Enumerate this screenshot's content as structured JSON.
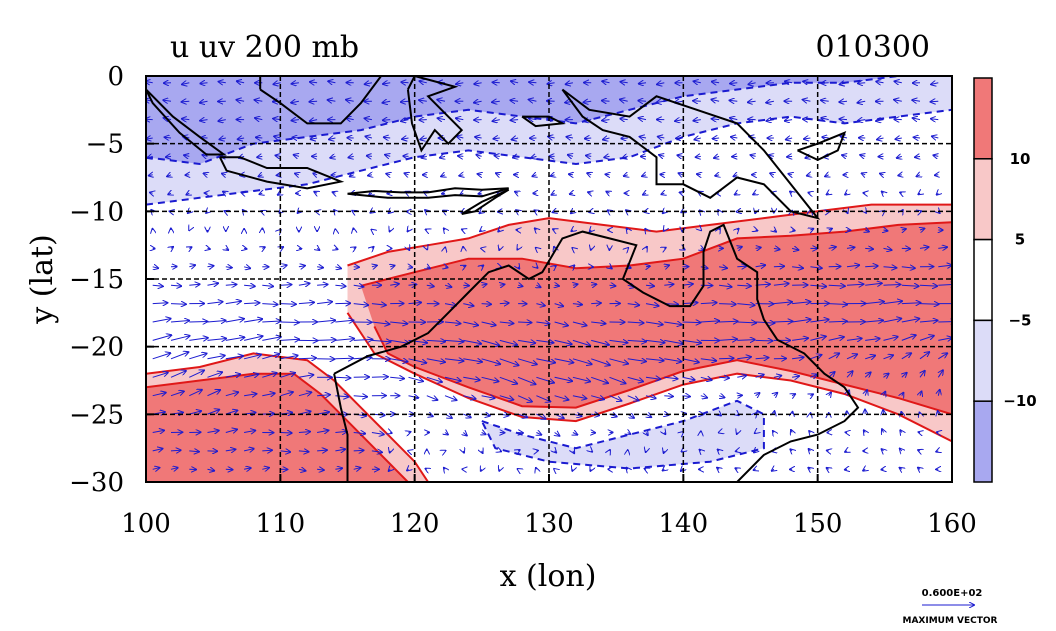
{
  "chart_data": {
    "type": "heatmap",
    "title": "u uv 200 mb",
    "timestamp": "010300",
    "xlabel": "x (lon)",
    "ylabel": "y (lat)",
    "xlim": [
      100,
      160
    ],
    "ylim": [
      -30,
      0
    ],
    "x_ticks": [
      "100",
      "110",
      "120",
      "130",
      "140",
      "150",
      "160"
    ],
    "y_ticks": [
      "0",
      "−5",
      "−10",
      "−15",
      "−20",
      "−25",
      "−30"
    ],
    "x_tick_values": [
      100,
      110,
      120,
      130,
      140,
      150,
      160
    ],
    "y_tick_values": [
      0,
      -5,
      -10,
      -15,
      -20,
      -25,
      -30
    ],
    "grid": true,
    "legend": {
      "placement": "right",
      "levels": [
        "10",
        "5",
        "−5",
        "−10"
      ],
      "level_values": [
        10,
        5,
        -5,
        -10
      ],
      "colors": [
        "#f07878",
        "#f8c8c8",
        "#ffffff",
        "#dcdcf8",
        "#a8a8f0"
      ]
    },
    "vector_legend": {
      "value": "0.600E+02",
      "label": "MAXIMUM VECTOR"
    },
    "shading": {
      "strong_positive_band": {
        "description_levels": "u > 10",
        "north_edge": [
          [
            116,
            -15.5
          ],
          [
            120,
            -14.5
          ],
          [
            124,
            -13.5
          ],
          [
            128,
            -13.5
          ],
          [
            132,
            -14.2
          ],
          [
            136,
            -14.0
          ],
          [
            140,
            -13.5
          ],
          [
            144,
            -12.0
          ],
          [
            148,
            -11.8
          ],
          [
            152,
            -11.5
          ],
          [
            156,
            -11.0
          ],
          [
            160,
            -10.8
          ]
        ],
        "south_edge": [
          [
            160,
            -25.0
          ],
          [
            156,
            -23.8
          ],
          [
            152,
            -22.8
          ],
          [
            148,
            -21.8
          ],
          [
            144,
            -21.0
          ],
          [
            140,
            -21.8
          ],
          [
            136,
            -23.2
          ],
          [
            132,
            -24.5
          ],
          [
            128,
            -24.4
          ],
          [
            124,
            -23.0
          ],
          [
            120,
            -21.5
          ],
          [
            118,
            -20.5
          ],
          [
            117,
            -18.5
          ]
        ]
      },
      "weak_positive_band": {
        "description_levels": "5 < u < 10",
        "north_edge": [
          [
            115,
            -14.0
          ],
          [
            118,
            -13.0
          ],
          [
            121,
            -12.5
          ],
          [
            124,
            -12.0
          ],
          [
            127,
            -11.0
          ],
          [
            130,
            -10.5
          ],
          [
            134,
            -11.0
          ],
          [
            138,
            -11.5
          ],
          [
            142,
            -11.0
          ],
          [
            146,
            -10.5
          ],
          [
            150,
            -10.0
          ],
          [
            154,
            -9.5
          ],
          [
            160,
            -9.5
          ]
        ],
        "south_edge": [
          [
            160,
            -27.0
          ],
          [
            156,
            -25.0
          ],
          [
            152,
            -23.5
          ],
          [
            148,
            -22.5
          ],
          [
            144,
            -22.0
          ],
          [
            140,
            -22.8
          ],
          [
            136,
            -24.2
          ],
          [
            132,
            -25.5
          ],
          [
            128,
            -25.2
          ],
          [
            124,
            -23.8
          ],
          [
            120,
            -22.0
          ],
          [
            117,
            -20.5
          ],
          [
            115,
            -17.5
          ]
        ]
      },
      "southwest_positive": {
        "weak_edge": [
          [
            100,
            -22.0
          ],
          [
            104,
            -21.5
          ],
          [
            108,
            -20.5
          ],
          [
            112,
            -21.0
          ],
          [
            114,
            -22.5
          ],
          [
            116,
            -24.5
          ],
          [
            118,
            -26.5
          ],
          [
            120,
            -28.5
          ],
          [
            121,
            -30.0
          ]
        ],
        "strong_edge": [
          [
            100,
            -23.0
          ],
          [
            104,
            -22.5
          ],
          [
            108,
            -22.0
          ],
          [
            111,
            -22.0
          ],
          [
            113,
            -23.5
          ],
          [
            115,
            -25.5
          ],
          [
            117,
            -27.5
          ],
          [
            119,
            -29.5
          ],
          [
            119.5,
            -30.0
          ]
        ]
      },
      "north_negative": {
        "weak_edge": [
          [
            100,
            -9.5
          ],
          [
            104,
            -9.0
          ],
          [
            108,
            -8.5
          ],
          [
            112,
            -8.0
          ],
          [
            116,
            -7.0
          ],
          [
            120,
            -6.0
          ],
          [
            124,
            -5.5
          ],
          [
            128,
            -6.0
          ],
          [
            132,
            -6.5
          ],
          [
            136,
            -6.0
          ],
          [
            140,
            -4.5
          ],
          [
            144,
            -3.5
          ],
          [
            148,
            -3.0
          ],
          [
            152,
            -3.5
          ],
          [
            156,
            -3.0
          ],
          [
            160,
            -2.5
          ]
        ],
        "strong_edge": [
          [
            100,
            -6.0
          ],
          [
            104,
            -6.5
          ],
          [
            108,
            -5.0
          ],
          [
            112,
            -4.5
          ],
          [
            116,
            -4.0
          ],
          [
            120,
            -3.0
          ],
          [
            124,
            -2.5
          ],
          [
            128,
            -3.0
          ],
          [
            132,
            -3.5
          ],
          [
            136,
            -2.5
          ],
          [
            140,
            -1.5
          ],
          [
            144,
            -1.0
          ],
          [
            148,
            -0.5
          ],
          [
            152,
            -0.5
          ],
          [
            156,
            0.0
          ],
          [
            160,
            0.0
          ]
        ]
      },
      "south_negative": {
        "edge": [
          [
            125,
            -25.5
          ],
          [
            128,
            -26.5
          ],
          [
            132,
            -27.5
          ],
          [
            136,
            -26.5
          ],
          [
            140,
            -25.5
          ],
          [
            144,
            -24.0
          ],
          [
            146,
            -25.0
          ],
          [
            146,
            -27.5
          ],
          [
            142,
            -28.5
          ],
          [
            136,
            -29.0
          ],
          [
            130,
            -28.5
          ],
          [
            126,
            -27.5
          ]
        ]
      }
    },
    "coastlines": {
      "australia": [
        [
          114,
          -22.0
        ],
        [
          114.5,
          -24.5
        ],
        [
          115,
          -26.5
        ],
        [
          115,
          -28.5
        ],
        [
          115,
          -30.0
        ],
        [
          144,
          -30.0
        ],
        [
          146,
          -28.0
        ],
        [
          148,
          -27.0
        ],
        [
          150,
          -26.5
        ],
        [
          152,
          -25.5
        ],
        [
          153,
          -24.5
        ],
        [
          152,
          -23.0
        ],
        [
          150.5,
          -22.0
        ],
        [
          149,
          -20.5
        ],
        [
          147,
          -19.5
        ],
        [
          146,
          -18.0
        ],
        [
          145.5,
          -16.5
        ],
        [
          145.5,
          -14.5
        ],
        [
          144,
          -13.5
        ],
        [
          143,
          -11.0
        ],
        [
          142,
          -11.5
        ],
        [
          141.5,
          -13.0
        ],
        [
          141.5,
          -15.5
        ],
        [
          140.5,
          -17.0
        ],
        [
          139,
          -17.0
        ],
        [
          137,
          -16.0
        ],
        [
          135.5,
          -15.0
        ],
        [
          136.5,
          -12.5
        ],
        [
          134.5,
          -12.0
        ],
        [
          132.5,
          -11.5
        ],
        [
          131,
          -12.0
        ],
        [
          129.5,
          -14.5
        ],
        [
          128.5,
          -15.0
        ],
        [
          127,
          -14.0
        ],
        [
          125.5,
          -14.5
        ],
        [
          124,
          -16.0
        ],
        [
          122.5,
          -17.5
        ],
        [
          121,
          -19.0
        ],
        [
          119,
          -20.0
        ],
        [
          116.5,
          -20.7
        ],
        [
          114,
          -22.0
        ]
      ],
      "new_guinea": [
        [
          131,
          -1.0
        ],
        [
          133,
          -2.5
        ],
        [
          136,
          -3.0
        ],
        [
          138,
          -1.5
        ],
        [
          141,
          -2.5
        ],
        [
          144,
          -3.5
        ],
        [
          146,
          -5.5
        ],
        [
          148,
          -8.0
        ],
        [
          150,
          -10.5
        ],
        [
          148,
          -10.0
        ],
        [
          146,
          -8.0
        ],
        [
          144,
          -7.5
        ],
        [
          142,
          -9.0
        ],
        [
          140,
          -8.0
        ],
        [
          138,
          -8.0
        ],
        [
          138,
          -6.0
        ],
        [
          136,
          -4.5
        ],
        [
          134,
          -4.0
        ],
        [
          132.5,
          -3.0
        ],
        [
          131,
          -1.0
        ]
      ],
      "java": [
        [
          105.5,
          -6.0
        ],
        [
          107,
          -6.0
        ],
        [
          109,
          -6.8
        ],
        [
          112,
          -6.8
        ],
        [
          114.5,
          -7.8
        ],
        [
          112,
          -8.3
        ],
        [
          109,
          -7.8
        ],
        [
          106,
          -7.0
        ],
        [
          105.5,
          -6.0
        ]
      ],
      "sumatra": [
        [
          100,
          -1.0
        ],
        [
          102,
          -3.0
        ],
        [
          104,
          -4.5
        ],
        [
          105.8,
          -5.8
        ],
        [
          104.5,
          -5.8
        ],
        [
          102.5,
          -4.2
        ],
        [
          100.5,
          -2.0
        ],
        [
          100,
          -1.0
        ]
      ],
      "borneo": [
        [
          108.5,
          -1.0
        ],
        [
          110,
          -2.0
        ],
        [
          112,
          -3.5
        ],
        [
          114.5,
          -3.5
        ],
        [
          116,
          -2.0
        ],
        [
          117.5,
          0.0
        ],
        [
          108.5,
          0.0
        ],
        [
          108.5,
          -1.0
        ]
      ],
      "sulawesi": [
        [
          119.5,
          -1.0
        ],
        [
          119.8,
          -3.5
        ],
        [
          120.5,
          -5.5
        ],
        [
          121.5,
          -4.0
        ],
        [
          122.5,
          -5.0
        ],
        [
          123.5,
          -4.0
        ],
        [
          122,
          -2.5
        ],
        [
          121,
          -1.5
        ],
        [
          123,
          -0.8
        ],
        [
          120,
          0.0
        ],
        [
          119.5,
          -1.0
        ]
      ],
      "lesser_sundas": [
        [
          115,
          -8.7
        ],
        [
          117,
          -8.5
        ],
        [
          119,
          -8.6
        ],
        [
          121,
          -8.6
        ],
        [
          123,
          -8.3
        ],
        [
          125,
          -8.4
        ],
        [
          127,
          -8.3
        ],
        [
          125,
          -8.9
        ],
        [
          123,
          -8.8
        ],
        [
          121,
          -9.0
        ],
        [
          118,
          -9.0
        ],
        [
          115,
          -8.7
        ]
      ],
      "timor": [
        [
          123.5,
          -10.2
        ],
        [
          125,
          -9.3
        ],
        [
          127,
          -8.4
        ],
        [
          126,
          -9.0
        ],
        [
          124.5,
          -10.0
        ],
        [
          123.5,
          -10.2
        ]
      ],
      "seram": [
        [
          128,
          -3.0
        ],
        [
          130,
          -3.0
        ],
        [
          131,
          -3.5
        ],
        [
          129,
          -3.7
        ],
        [
          128,
          -3.0
        ]
      ],
      "new_britain": [
        [
          148.5,
          -5.5
        ],
        [
          150,
          -5.0
        ],
        [
          152,
          -4.2
        ],
        [
          151.5,
          -5.5
        ],
        [
          150,
          -6.2
        ],
        [
          148.5,
          -5.5
        ]
      ],
      "tasmania_hint": [
        [
          147,
          -29.5
        ]
      ]
    },
    "wind_field": {
      "grid_spacing_deg": 1.0,
      "max_vector_ms": 60
    }
  }
}
